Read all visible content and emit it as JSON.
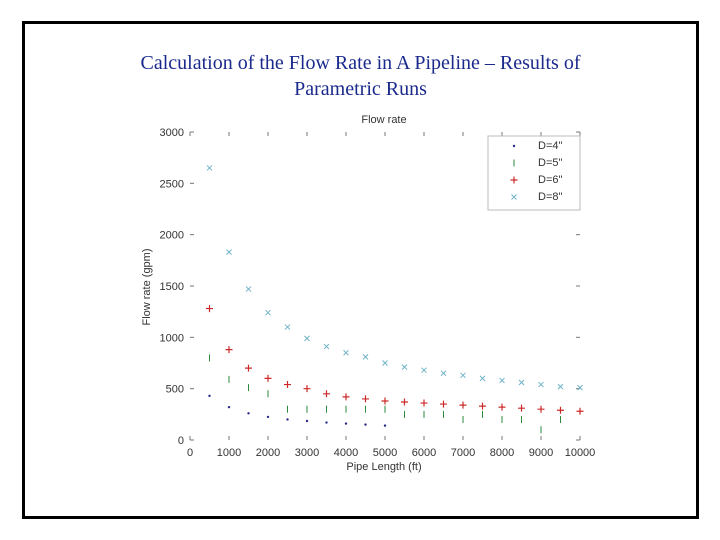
{
  "slide": {
    "title_line1": "Calculation of the Flow Rate in A Pipeline – Results of",
    "title_line2": "Parametric Runs",
    "title_color": "#1a2a8c"
  },
  "chart_data": {
    "type": "scatter",
    "title": "Flow rate",
    "xlabel": "Pipe Length (ft)",
    "ylabel": "Flow rate (gpm)",
    "xlim": [
      0,
      10000
    ],
    "ylim": [
      0,
      3000
    ],
    "xticks": [
      0,
      1000,
      2000,
      3000,
      4000,
      5000,
      6000,
      7000,
      8000,
      9000,
      10000
    ],
    "yticks": [
      0,
      500,
      1000,
      1500,
      2000,
      2500,
      3000
    ],
    "legend_position": "top-right",
    "series": [
      {
        "name": "D=4\"",
        "marker": "dot",
        "color": "#2a2a8a",
        "x": [
          500,
          1000,
          1500,
          2000,
          2500,
          3000,
          3500,
          4000,
          4500,
          5000
        ],
        "y": [
          430,
          320,
          260,
          225,
          200,
          185,
          170,
          160,
          150,
          140
        ]
      },
      {
        "name": "D=5\"",
        "marker": "vline",
        "color": "#2a8a3a",
        "x": [
          500,
          1000,
          1500,
          2000,
          2500,
          3000,
          3500,
          4000,
          4500,
          5000,
          5500,
          6000,
          6500,
          7000,
          7500,
          8000,
          8500,
          9000,
          9500
        ],
        "y": [
          800,
          590,
          510,
          450,
          300,
          300,
          300,
          300,
          300,
          300,
          250,
          250,
          250,
          200,
          250,
          200,
          200,
          100,
          200
        ]
      },
      {
        "name": "D=6\"",
        "marker": "plus",
        "color": "#cc2a2a",
        "x": [
          500,
          1000,
          1500,
          2000,
          2500,
          3000,
          3500,
          4000,
          4500,
          5000,
          5500,
          6000,
          6500,
          7000,
          7500,
          8000,
          8500,
          9000,
          9500,
          10000
        ],
        "y": [
          1280,
          880,
          700,
          600,
          540,
          500,
          450,
          420,
          400,
          380,
          370,
          360,
          350,
          340,
          330,
          320,
          310,
          300,
          290,
          280
        ]
      },
      {
        "name": "D=8\"",
        "marker": "x",
        "color": "#6fb3c8",
        "x": [
          500,
          1000,
          1500,
          2000,
          2500,
          3000,
          3500,
          4000,
          4500,
          5000,
          5500,
          6000,
          6500,
          7000,
          7500,
          8000,
          8500,
          9000,
          9500,
          10000
        ],
        "y": [
          2650,
          1830,
          1470,
          1240,
          1100,
          990,
          910,
          850,
          810,
          750,
          710,
          680,
          650,
          630,
          600,
          580,
          560,
          540,
          520,
          510
        ]
      }
    ]
  }
}
